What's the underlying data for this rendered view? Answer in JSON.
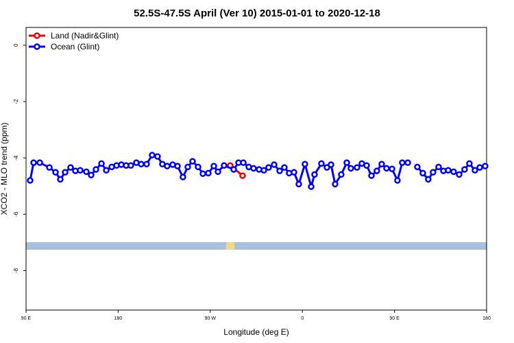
{
  "chart_data": {
    "type": "line",
    "title": "52.5S-47.5S April (Ver 10)   2015-01-01 to 2020-12-18",
    "x_label": "Longitude (deg E)",
    "y_label": "XCO2 - MLO trend (ppm)",
    "xlim": [
      90,
      540
    ],
    "ylim": [
      -9.4,
      0.63
    ],
    "xticks": [
      {
        "value": 90,
        "label": "90 E"
      },
      180,
      {
        "value": 270,
        "label": "90 W"
      },
      {
        "value": 360,
        "label": "0"
      },
      {
        "value": 450,
        "label": "90 E"
      },
      {
        "value": 540,
        "label": "180"
      }
    ],
    "yticks": [
      0,
      -2,
      -4,
      -6,
      -8
    ],
    "legend": "top-left",
    "series": [
      {
        "name": "Land (Nadir&Glint)",
        "color": "#ee0000",
        "x": [
          289.5,
          301.6
        ],
        "values": [
          -4.27,
          -4.63
        ]
      },
      {
        "name": "Ocean (Glint)",
        "color": "#0000ee",
        "x": [
          94.0,
          97.4,
          103.4,
          112.8,
          118.8,
          123.5,
          128.2,
          133.5,
          138.2,
          142.9,
          148.9,
          153.6,
          158.3,
          163.7,
          168.4,
          173.7,
          178.4,
          183.1,
          187.8,
          192.4,
          197.8,
          202.5,
          207.8,
          213.2,
          218.5,
          223.2,
          227.9,
          233.3,
          238.0,
          243.3,
          248.0,
          252.7,
          258.1,
          262.8,
          268.1,
          273.5,
          277.5,
          283.5,
          292.9,
          297.6,
          302.3,
          307.6,
          312.3,
          317.7,
          322.4,
          327.0,
          332.4,
          337.8,
          342.4,
          347.1,
          351.8,
          356.5,
          362.5,
          368.6,
          371.9,
          378.6,
          384.0,
          388.0,
          392.0,
          398.0,
          403.4,
          407.4,
          413.4,
          418.1,
          422.8,
          427.5,
          432.8,
          437.5,
          442.2,
          447.6,
          452.9,
          457.6,
          463.0,
          467.7,
          472.3,
          477.7,
          483.0,
          487.7,
          493.1,
          497.8,
          502.5,
          507.8,
          513.2,
          518.5,
          523.2,
          528.6,
          533.3,
          538.6
        ],
        "values": [
          -4.8,
          -4.17,
          -4.17,
          -4.34,
          -4.51,
          -4.76,
          -4.51,
          -4.34,
          -4.46,
          -4.44,
          -4.49,
          -4.61,
          -4.41,
          -4.2,
          -4.44,
          -4.32,
          -4.27,
          -4.24,
          -4.27,
          -4.27,
          -4.17,
          -4.22,
          -4.22,
          -3.9,
          -3.95,
          -4.22,
          -4.29,
          -4.24,
          -4.29,
          -4.68,
          -4.32,
          -4.12,
          -4.32,
          -4.56,
          -4.54,
          -4.29,
          -4.49,
          -4.27,
          -4.41,
          -4.17,
          -4.17,
          -4.32,
          -4.37,
          -4.41,
          -4.44,
          -4.34,
          -4.24,
          -4.46,
          -4.34,
          -4.54,
          -4.51,
          -4.93,
          -4.22,
          -5.02,
          -4.59,
          -4.2,
          -4.34,
          -4.24,
          -4.93,
          -4.59,
          -4.17,
          -4.37,
          -4.34,
          -4.2,
          -4.27,
          -4.63,
          -4.46,
          -4.22,
          -4.37,
          -4.39,
          -4.8,
          -4.17,
          -4.17,
          null,
          -4.32,
          -4.54,
          -4.76,
          -4.51,
          -4.32,
          -4.46,
          -4.44,
          -4.49,
          -4.59,
          -4.41,
          -4.2,
          -4.44,
          -4.34,
          -4.29
        ]
      }
    ]
  }
}
